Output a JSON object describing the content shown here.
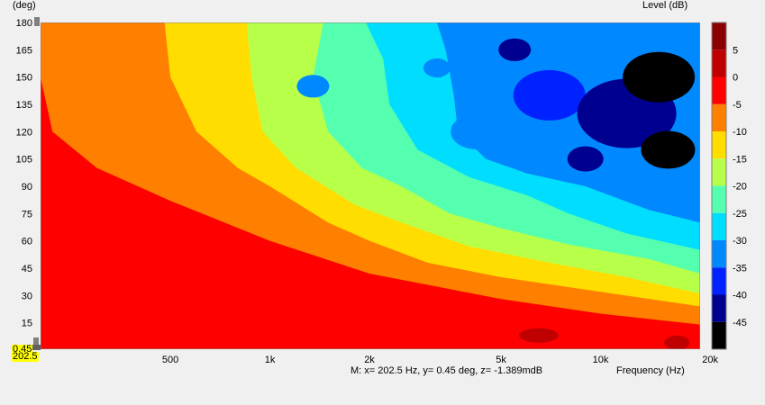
{
  "header": {
    "y_unit": "(deg)",
    "z_unit": "Level  (dB)"
  },
  "footer": {
    "xlabel": "Frequency  (Hz)",
    "marker_readout": "M:  x= 202.5 Hz,  y= 0.45 deg, z= -1.389mdB"
  },
  "cursor": {
    "y_value": "0.45",
    "x_value": "202.5",
    "highlight_color": "#ffff00"
  },
  "chart_data": {
    "type": "heatmap",
    "title": "",
    "xlabel": "Frequency  (Hz)",
    "ylabel": "(deg)",
    "zlabel": "Level  (dB)",
    "x_scale": "log",
    "x_range": [
      202.5,
      20000
    ],
    "y_range": [
      0.45,
      180
    ],
    "x_ticks": [
      {
        "value": 500,
        "label": "500"
      },
      {
        "value": 1000,
        "label": "1k"
      },
      {
        "value": 2000,
        "label": "2k"
      },
      {
        "value": 5000,
        "label": "5k"
      },
      {
        "value": 10000,
        "label": "10k"
      },
      {
        "value": 20000,
        "label": "20k"
      }
    ],
    "y_ticks": [
      15,
      30,
      45,
      60,
      75,
      90,
      105,
      120,
      135,
      150,
      165,
      180
    ],
    "colorbar": {
      "ticks": [
        5,
        0,
        -5,
        -10,
        -15,
        -20,
        -25,
        -30,
        -35,
        -40,
        -45
      ],
      "levels": [
        {
          "from": 5,
          "to": 10,
          "color": "#8b0000"
        },
        {
          "from": 0,
          "to": 5,
          "color": "#c00000"
        },
        {
          "from": -5,
          "to": 0,
          "color": "#ff0000"
        },
        {
          "from": -10,
          "to": -5,
          "color": "#ff7f00"
        },
        {
          "from": -15,
          "to": -10,
          "color": "#ffdd00"
        },
        {
          "from": -20,
          "to": -15,
          "color": "#b8ff4a"
        },
        {
          "from": -25,
          "to": -20,
          "color": "#55ffb0"
        },
        {
          "from": -30,
          "to": -25,
          "color": "#00ddff"
        },
        {
          "from": -35,
          "to": -30,
          "color": "#0088ff"
        },
        {
          "from": -40,
          "to": -35,
          "color": "#0022ff"
        },
        {
          "from": -45,
          "to": -40,
          "color": "#000090"
        },
        {
          "from": -50,
          "to": -45,
          "color": "#000000"
        }
      ]
    },
    "contours": [
      {
        "level": -5,
        "boundary": [
          [
            202.5,
            150
          ],
          [
            220,
            120
          ],
          [
            300,
            100
          ],
          [
            500,
            82
          ],
          [
            1000,
            60
          ],
          [
            2000,
            42
          ],
          [
            5000,
            28
          ],
          [
            10000,
            20
          ],
          [
            20000,
            14
          ]
        ]
      },
      {
        "level": -10,
        "boundary": [
          [
            480,
            180
          ],
          [
            500,
            150
          ],
          [
            600,
            120
          ],
          [
            800,
            100
          ],
          [
            1000,
            90
          ],
          [
            1500,
            70
          ],
          [
            2000,
            60
          ],
          [
            3000,
            48
          ],
          [
            5000,
            40
          ],
          [
            10000,
            32
          ],
          [
            20000,
            24
          ]
        ]
      },
      {
        "level": -15,
        "boundary": [
          [
            850,
            180
          ],
          [
            880,
            150
          ],
          [
            950,
            120
          ],
          [
            1200,
            100
          ],
          [
            1800,
            80
          ],
          [
            2500,
            70
          ],
          [
            4000,
            57
          ],
          [
            7000,
            48
          ],
          [
            12000,
            40
          ],
          [
            20000,
            31
          ]
        ]
      },
      {
        "level": -20,
        "boundary": [
          [
            1450,
            180
          ],
          [
            1350,
            150
          ],
          [
            1500,
            120
          ],
          [
            1900,
            100
          ],
          [
            2500,
            90
          ],
          [
            3500,
            75
          ],
          [
            5000,
            67
          ],
          [
            8000,
            58
          ],
          [
            14000,
            50
          ],
          [
            20000,
            42
          ]
        ]
      },
      {
        "level": -25,
        "boundary": [
          [
            1950,
            180
          ],
          [
            2200,
            160
          ],
          [
            2300,
            135
          ],
          [
            2800,
            110
          ],
          [
            4000,
            95
          ],
          [
            6000,
            85
          ],
          [
            8000,
            75
          ],
          [
            12000,
            64
          ],
          [
            20000,
            55
          ]
        ]
      },
      {
        "level": -30,
        "boundary": [
          [
            3200,
            180
          ],
          [
            3400,
            165
          ],
          [
            3600,
            140
          ],
          [
            3700,
            120
          ],
          [
            4500,
            105
          ],
          [
            6000,
            97
          ],
          [
            9000,
            90
          ],
          [
            14000,
            77
          ],
          [
            20000,
            70
          ]
        ]
      }
    ],
    "deep_nulls_db": -45
  }
}
